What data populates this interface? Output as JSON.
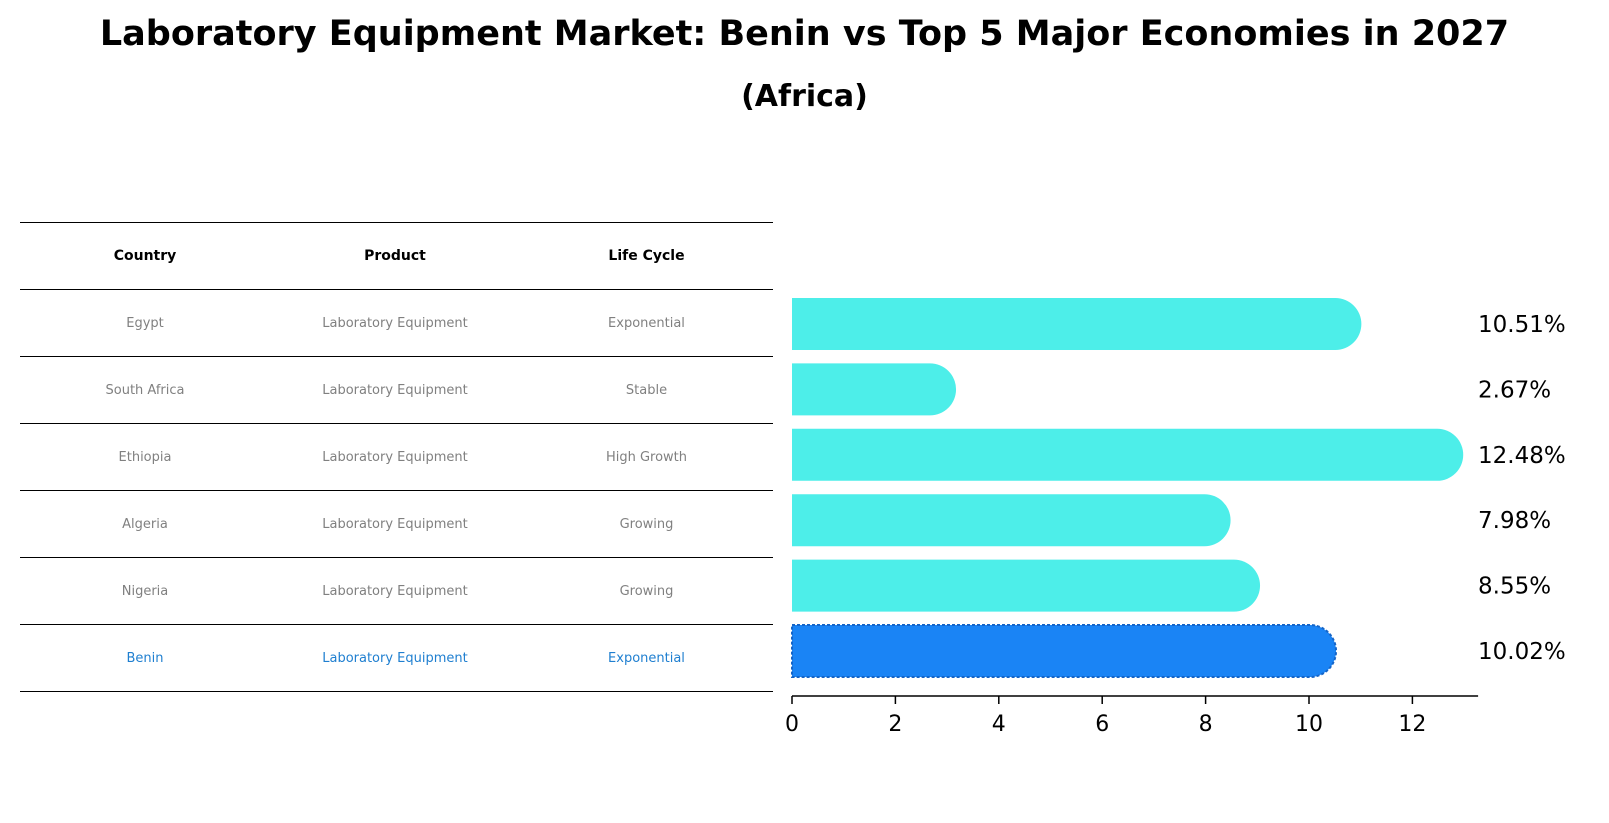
{
  "title": "Laboratory Equipment Market: Benin vs Top 5 Major Economies in 2027",
  "subtitle": "(Africa)",
  "table": {
    "headers": [
      "Country",
      "Product",
      "Life Cycle"
    ],
    "rows": [
      {
        "country": "Egypt",
        "product": "Laboratory Equipment",
        "life_cycle": "Exponential"
      },
      {
        "country": "South Africa",
        "product": "Laboratory Equipment",
        "life_cycle": "Stable"
      },
      {
        "country": "Ethiopia",
        "product": "Laboratory Equipment",
        "life_cycle": "High Growth"
      },
      {
        "country": "Algeria",
        "product": "Laboratory Equipment",
        "life_cycle": "Growing"
      },
      {
        "country": "Nigeria",
        "product": "Laboratory Equipment",
        "life_cycle": "Growing"
      },
      {
        "country": "Benin",
        "product": "Laboratory Equipment",
        "life_cycle": "Exponential"
      }
    ]
  },
  "chart_data": {
    "type": "bar",
    "orientation": "horizontal",
    "categories": [
      "Egypt",
      "South Africa",
      "Ethiopia",
      "Algeria",
      "Nigeria",
      "Benin"
    ],
    "values": [
      10.51,
      2.67,
      12.48,
      7.98,
      8.55,
      10.02
    ],
    "value_labels": [
      "10.51%",
      "2.67%",
      "12.48%",
      "7.98%",
      "8.55%",
      "10.02%"
    ],
    "highlight": "Benin",
    "xlim": [
      0,
      13
    ],
    "xticks": [
      0,
      2,
      4,
      6,
      8,
      10,
      12
    ],
    "colors": {
      "default": "#4deee9",
      "highlight": "#1a84f5"
    },
    "grid": false
  }
}
